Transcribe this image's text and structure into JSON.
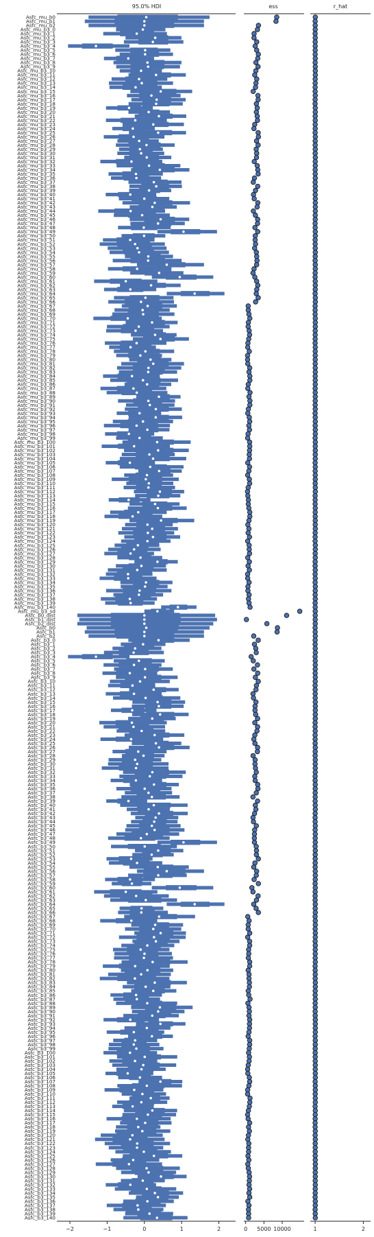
{
  "colors": {
    "accent": "#4c72b0",
    "median_fill": "#ffffff",
    "marker_edge": "#1a1a1a"
  },
  "chart_data": {
    "type": "forest",
    "panels": [
      {
        "title": "95.0% HDI",
        "xlim": [
          -2.35,
          2.45
        ],
        "xticks": [
          -2,
          -1,
          0,
          1,
          2
        ]
      },
      {
        "title": "ess",
        "xlim": [
          -500,
          16000
        ],
        "xticks": [
          0,
          5000,
          10000
        ]
      },
      {
        "title": "r_hat",
        "xlim": [
          0.9,
          2.15
        ],
        "xticks": [
          1,
          2
        ]
      }
    ],
    "groups": [
      {
        "name": "Asfc_mu_b0",
        "count": 1
      },
      {
        "name": "Asfc_mu_b1",
        "count": 1
      },
      {
        "name": "Asfc_mu_b2",
        "count": 1
      },
      {
        "name": "Asfc_mu_b3",
        "count": 141
      },
      {
        "name": "Asfc_mu_b3_sd",
        "count": 1
      },
      {
        "name": "Asfc_b0_dist",
        "count": 1
      },
      {
        "name": "Asfc_b1_dist",
        "count": 1
      },
      {
        "name": "Asfc_b2_dist",
        "count": 1
      },
      {
        "name": "Asfc_b0",
        "count": 1
      },
      {
        "name": "Asfc_b1",
        "count": 1
      },
      {
        "name": "Asfc_b2",
        "count": 1
      },
      {
        "name": "Asfc_b3",
        "count": 141
      }
    ],
    "highlights": [
      {
        "index": 0,
        "median": 0.05,
        "hdi": [
          -1.5,
          1.75
        ],
        "ess": 8500
      },
      {
        "index": 1,
        "median": 0.0,
        "hdi": [
          -1.6,
          1.6
        ],
        "ess": 8300
      },
      {
        "index": 2,
        "median": 0.0,
        "hdi": [
          -1.5,
          1.6
        ],
        "ess": 3500
      },
      {
        "index": 7,
        "median": -1.3,
        "hdi": [
          -2.05,
          -0.4
        ],
        "ess": 2600
      },
      {
        "index": 52,
        "median": 1.05,
        "hdi": [
          0.35,
          1.95
        ],
        "ess": 3300
      },
      {
        "index": 55,
        "median": -0.25,
        "hdi": [
          -1.2,
          0.55
        ],
        "ess": 2700
      },
      {
        "index": 59,
        "median": 0.1,
        "hdi": [
          -0.85,
          1.0
        ],
        "ess": 3100
      },
      {
        "index": 60,
        "median": 0.6,
        "hdi": [
          -0.2,
          1.6
        ],
        "ess": 3000
      },
      {
        "index": 63,
        "median": 0.95,
        "hdi": [
          0.2,
          1.85
        ],
        "ess": 2500
      },
      {
        "index": 64,
        "median": -0.5,
        "hdi": [
          -1.35,
          0.35
        ],
        "ess": 3000
      },
      {
        "index": 67,
        "median": 1.35,
        "hdi": [
          0.6,
          2.15
        ],
        "ess": 2900
      },
      {
        "index": 143,
        "median": 0.9,
        "hdi": [
          0.45,
          1.4
        ],
        "ess": 1200
      },
      {
        "index": 144,
        "median": 0.35,
        "hdi": [
          0.0,
          0.8
        ],
        "ess": 14800
      },
      {
        "index": 145,
        "median": 0.0,
        "hdi": [
          -1.8,
          1.9
        ],
        "ess": 11200
      },
      {
        "index": 146,
        "median": 0.0,
        "hdi": [
          -1.75,
          1.95
        ],
        "ess": 200
      },
      {
        "index": 147,
        "median": 0.0,
        "hdi": [
          -1.8,
          1.85
        ],
        "ess": 5800
      },
      {
        "index": 148,
        "median": 0.05,
        "hdi": [
          -1.55,
          1.75
        ],
        "ess": 8700
      },
      {
        "index": 149,
        "median": 0.0,
        "hdi": [
          -1.6,
          1.6
        ],
        "ess": 8600
      },
      {
        "index": 150,
        "median": 0.0,
        "hdi": [
          -1.5,
          1.6
        ],
        "ess": 2200
      },
      {
        "index": 155,
        "median": -1.3,
        "hdi": [
          -2.05,
          -0.4
        ],
        "ess": 1500
      },
      {
        "index": 200,
        "median": 1.05,
        "hdi": [
          0.35,
          1.95
        ],
        "ess": 2400
      },
      {
        "index": 207,
        "median": 0.6,
        "hdi": [
          -0.2,
          1.6
        ],
        "ess": 3000
      },
      {
        "index": 211,
        "median": 0.95,
        "hdi": [
          0.2,
          1.85
        ],
        "ess": 1700
      },
      {
        "index": 212,
        "median": -0.5,
        "hdi": [
          -1.35,
          0.35
        ],
        "ess": 2000
      },
      {
        "index": 215,
        "median": 1.35,
        "hdi": [
          0.6,
          2.15
        ],
        "ess": 2200
      }
    ],
    "xlabel": "",
    "ylabel": ""
  }
}
